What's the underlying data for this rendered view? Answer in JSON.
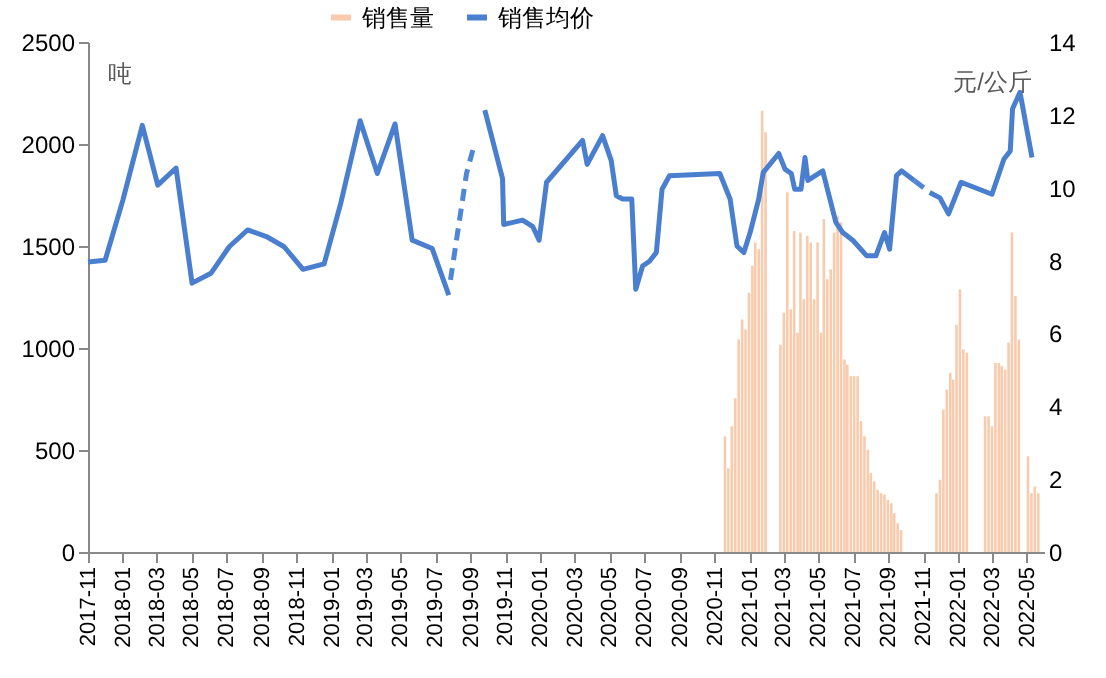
{
  "chart_data": {
    "type": "bar",
    "xlim": [
      "2017-11-01",
      "2022-05-31"
    ],
    "xticks": [
      "2017-11",
      "2018-01",
      "2018-03",
      "2018-05",
      "2018-07",
      "2018-09",
      "2018-11",
      "2019-01",
      "2019-03",
      "2019-05",
      "2019-07",
      "2019-09",
      "2019-11",
      "2020-01",
      "2020-03",
      "2020-05",
      "2020-07",
      "2020-09",
      "2020-11",
      "2021-01",
      "2021-03",
      "2021-05",
      "2021-07",
      "2021-09",
      "2021-11",
      "2022-01",
      "2022-03",
      "2022-05"
    ],
    "ylim": [
      0,
      2500
    ],
    "yticks": [
      0,
      500,
      1000,
      1500,
      2000,
      2500
    ],
    "y2lim": [
      0,
      14
    ],
    "y2ticks": [
      0,
      2,
      4,
      6,
      8,
      10,
      12,
      14
    ],
    "grid": false,
    "legend": "top",
    "annotations": [
      "吨",
      "元/公斤"
    ],
    "series": [
      {
        "name": "销售量",
        "color": "#f8cbad",
        "x": [
          "2020-11-19",
          "2020-11-25",
          "2020-12-01",
          "2020-12-07",
          "2020-12-13",
          "2020-12-19",
          "2020-12-25",
          "2020-12-31",
          "2021-01-06",
          "2021-01-11",
          "2021-01-17",
          "2021-01-23",
          "2021-01-29",
          "2021-02-24",
          "2021-03-02",
          "2021-03-08",
          "2021-03-14",
          "2021-03-20",
          "2021-03-26",
          "2021-03-31",
          "2021-04-06",
          "2021-04-12",
          "2021-04-18",
          "2021-04-24",
          "2021-04-30",
          "2021-05-06",
          "2021-05-11",
          "2021-05-17",
          "2021-05-23",
          "2021-05-29",
          "2021-06-04",
          "2021-06-10",
          "2021-06-16",
          "2021-06-21",
          "2021-06-27",
          "2021-07-03",
          "2021-07-09",
          "2021-07-15",
          "2021-07-21",
          "2021-07-27",
          "2021-08-01",
          "2021-08-07",
          "2021-08-13",
          "2021-08-19",
          "2021-08-25",
          "2021-08-31",
          "2021-09-06",
          "2021-09-11",
          "2021-09-17",
          "2021-09-23",
          "2021-11-24",
          "2021-11-30",
          "2021-12-06",
          "2021-12-12",
          "2021-12-18",
          "2021-12-23",
          "2021-12-29",
          "2022-01-04",
          "2022-01-10",
          "2022-01-16",
          "2022-02-17",
          "2022-02-23",
          "2022-03-01",
          "2022-03-07",
          "2022-03-13",
          "2022-03-18",
          "2022-03-24",
          "2022-03-30",
          "2022-04-05",
          "2022-04-11",
          "2022-04-17",
          "2022-05-03",
          "2022-05-09",
          "2022-05-15",
          "2022-05-21"
        ],
        "values": [
          567,
          410,
          616,
          754,
          1042,
          1140,
          1091,
          1271,
          1403,
          1517,
          1484,
          2163,
          2058,
          1016,
          1173,
          1763,
          1190,
          1573,
          1075,
          1566,
          1239,
          1550,
          1517,
          1239,
          1517,
          1075,
          1632,
          1337,
          1386,
          1566,
          1648,
          1616,
          944,
          918,
          862,
          862,
          862,
          642,
          567,
          501,
          387,
          347,
          305,
          288,
          282,
          256,
          239,
          190,
          141,
          108,
          288,
          354,
          698,
          796,
          878,
          845,
          1114,
          1288,
          993,
          977,
          665,
          665,
          616,
          927,
          927,
          911,
          895,
          1026,
          1566,
          1255,
          1042,
          469,
          288,
          321,
          288
        ]
      },
      {
        "name": "销售均价",
        "type": "line",
        "axis": "y2",
        "color": "#4a7fcf",
        "line_style": "solid",
        "x": [
          "2017-11-01",
          "2017-12-01",
          "2018-01-01",
          "2018-02-04",
          "2018-03-03",
          "2018-04-04",
          "2018-05-02",
          "2018-06-04",
          "2018-07-06",
          "2018-08-07",
          "2018-09-09",
          "2018-10-10",
          "2018-11-12",
          "2018-12-19",
          "2019-01-17",
          "2019-02-20",
          "2019-03-22",
          "2019-04-22",
          "2019-05-22",
          "2019-06-26",
          "2019-07-25",
          "2019-08-25",
          "2019-09-26",
          "2019-10-27",
          "2019-10-29",
          "2019-12-01",
          "2019-12-19",
          "2019-12-30",
          "2020-01-12",
          "2020-03-15",
          "2020-03-23",
          "2020-04-19",
          "2020-05-04",
          "2020-05-13",
          "2020-05-24",
          "2020-06-09",
          "2020-06-16",
          "2020-06-28",
          "2020-07-10",
          "2020-07-22",
          "2020-08-01",
          "2020-08-14",
          "2020-11-10",
          "2020-11-28",
          "2020-12-10",
          "2020-12-22",
          "2021-01-02",
          "2021-01-17",
          "2021-01-25",
          "2021-02-21",
          "2021-03-04",
          "2021-03-15",
          "2021-03-21",
          "2021-04-01",
          "2021-04-08",
          "2021-04-13",
          "2021-05-09",
          "2021-06-01",
          "2021-06-13",
          "2021-07-01",
          "2021-07-25",
          "2021-08-10",
          "2021-08-25",
          "2021-09-03",
          "2021-09-15",
          "2021-09-24",
          "2021-10-16",
          "2021-11-01",
          "2021-11-12",
          "2021-11-30",
          "2021-12-15",
          "2022-01-06",
          "2022-03-01",
          "2022-03-22",
          "2022-04-02",
          "2022-04-06",
          "2022-04-19",
          "2022-05-10"
        ],
        "values": [
          7.96,
          8.01,
          9.66,
          11.71,
          10.07,
          10.54,
          7.38,
          7.65,
          8.38,
          8.84,
          8.66,
          8.38,
          7.76,
          7.91,
          9.57,
          11.84,
          10.39,
          11.75,
          8.56,
          8.33,
          7.05,
          null,
          12.13,
          10.25,
          8.99,
          9.11,
          8.93,
          8.56,
          10.15,
          11.3,
          10.64,
          11.43,
          10.75,
          9.78,
          9.69,
          9.69,
          7.21,
          7.85,
          7.98,
          8.22,
          9.96,
          10.33,
          10.39,
          9.69,
          8.4,
          8.22,
          8.77,
          9.69,
          10.42,
          10.94,
          10.51,
          10.39,
          9.96,
          9.96,
          10.83,
          10.2,
          10.46,
          9.05,
          8.77,
          8.55,
          8.13,
          8.13,
          8.77,
          8.31,
          10.33,
          10.46,
          10.2,
          null,
          9.87,
          9.72,
          9.28,
          10.15,
          9.82,
          10.79,
          11.01,
          12.17,
          12.62,
          10.83
        ]
      },
      {
        "type": "line",
        "axis": "y2",
        "color": "#4f86d6",
        "line_style": "dashed",
        "x": [
          "2019-07-28",
          "2019-08-25",
          "2019-09-05",
          "2021-10-01",
          "2021-10-16",
          "2021-11-12"
        ],
        "values": [
          7.47,
          10.39,
          11.03,
          null,
          10.2,
          9.87
        ]
      }
    ]
  }
}
